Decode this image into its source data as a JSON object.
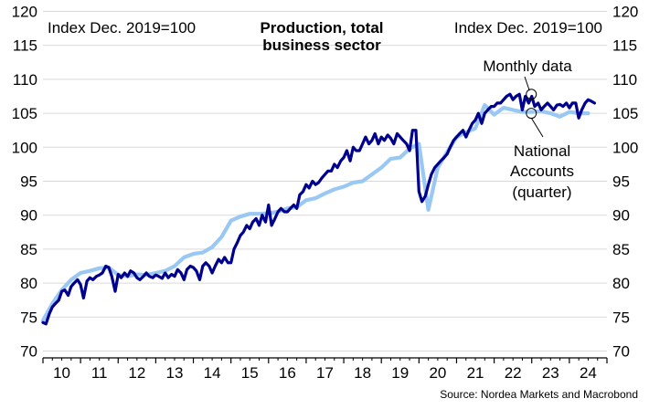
{
  "chart_data": {
    "type": "line",
    "title": "Production, total business sector",
    "title_lines": [
      "Production, total",
      "business sector"
    ],
    "ylabel_left": "Index Dec. 2019=100",
    "ylabel_right": "Index Dec. 2019=100",
    "source": "Source: Nordea Markets and Macrobond",
    "ylim": [
      69,
      121
    ],
    "yticks": [
      70,
      75,
      80,
      85,
      90,
      95,
      100,
      105,
      110,
      115,
      120
    ],
    "yticks_labels": [
      "70",
      "75",
      "80",
      "85",
      "90",
      "95",
      "100",
      "105",
      "110",
      "115",
      "120"
    ],
    "x_range": [
      2010,
      2025
    ],
    "xtick_labels": [
      "10",
      "11",
      "12",
      "13",
      "14",
      "15",
      "16",
      "17",
      "18",
      "19",
      "20",
      "21",
      "22",
      "23",
      "24"
    ],
    "grid": true,
    "annotations": [
      {
        "lines": [
          "Monthly data"
        ],
        "target": [
          2023.0,
          107.8
        ]
      },
      {
        "lines": [
          "National",
          "Accounts",
          "(quarter)"
        ],
        "target": [
          2023.0,
          105.0
        ]
      }
    ],
    "series": [
      {
        "name": "Monthly data",
        "color": "#00008f",
        "x": [
          2010.0,
          2010.08,
          2010.17,
          2010.25,
          2010.33,
          2010.42,
          2010.5,
          2010.58,
          2010.67,
          2010.75,
          2010.83,
          2010.92,
          2011.0,
          2011.08,
          2011.17,
          2011.25,
          2011.33,
          2011.42,
          2011.5,
          2011.58,
          2011.67,
          2011.75,
          2011.83,
          2011.92,
          2012.0,
          2012.08,
          2012.17,
          2012.25,
          2012.33,
          2012.42,
          2012.5,
          2012.58,
          2012.67,
          2012.75,
          2012.83,
          2012.92,
          2013.0,
          2013.08,
          2013.17,
          2013.25,
          2013.33,
          2013.42,
          2013.5,
          2013.58,
          2013.67,
          2013.75,
          2013.83,
          2013.92,
          2014.0,
          2014.08,
          2014.17,
          2014.25,
          2014.33,
          2014.42,
          2014.5,
          2014.58,
          2014.67,
          2014.75,
          2014.83,
          2014.92,
          2015.0,
          2015.08,
          2015.17,
          2015.25,
          2015.33,
          2015.42,
          2015.5,
          2015.58,
          2015.67,
          2015.75,
          2015.83,
          2015.92,
          2016.0,
          2016.08,
          2016.17,
          2016.25,
          2016.33,
          2016.42,
          2016.5,
          2016.58,
          2016.67,
          2016.75,
          2016.83,
          2016.92,
          2017.0,
          2017.08,
          2017.17,
          2017.25,
          2017.33,
          2017.42,
          2017.5,
          2017.58,
          2017.67,
          2017.75,
          2017.83,
          2017.92,
          2018.0,
          2018.08,
          2018.17,
          2018.25,
          2018.33,
          2018.42,
          2018.5,
          2018.58,
          2018.67,
          2018.75,
          2018.83,
          2018.92,
          2019.0,
          2019.08,
          2019.17,
          2019.25,
          2019.33,
          2019.42,
          2019.5,
          2019.58,
          2019.67,
          2019.75,
          2019.83,
          2019.92,
          2020.0,
          2020.08,
          2020.17,
          2020.25,
          2020.33,
          2020.42,
          2020.5,
          2020.58,
          2020.67,
          2020.75,
          2020.83,
          2020.92,
          2021.0,
          2021.08,
          2021.17,
          2021.25,
          2021.33,
          2021.42,
          2021.5,
          2021.58,
          2021.67,
          2021.75,
          2021.83,
          2021.92,
          2022.0,
          2022.08,
          2022.17,
          2022.25,
          2022.33,
          2022.42,
          2022.5,
          2022.58,
          2022.67,
          2022.75,
          2022.83,
          2022.92,
          2023.0,
          2023.08,
          2023.17,
          2023.25,
          2023.33,
          2023.42,
          2023.5,
          2023.58,
          2023.67,
          2023.75,
          2023.83,
          2023.92,
          2024.0,
          2024.08,
          2024.17,
          2024.25,
          2024.33,
          2024.42,
          2024.5,
          2024.58,
          2024.67
        ],
        "values": [
          74.2,
          74.0,
          75.5,
          76.5,
          77.0,
          77.5,
          78.8,
          79.0,
          78.2,
          79.5,
          80.0,
          80.5,
          79.8,
          77.8,
          80.3,
          80.8,
          80.5,
          81.0,
          81.2,
          81.5,
          82.5,
          82.3,
          81.0,
          78.8,
          81.3,
          80.8,
          81.5,
          81.0,
          81.8,
          81.5,
          80.8,
          80.5,
          81.0,
          81.5,
          81.0,
          80.8,
          81.2,
          81.0,
          80.7,
          81.5,
          80.8,
          81.3,
          81.0,
          82.0,
          81.5,
          80.5,
          82.0,
          82.5,
          82.3,
          81.8,
          80.5,
          82.5,
          83.0,
          82.5,
          81.5,
          82.5,
          83.5,
          83.0,
          83.8,
          83.0,
          83.0,
          85.0,
          86.0,
          87.0,
          87.5,
          88.5,
          88.0,
          89.0,
          89.5,
          88.5,
          90.0,
          89.0,
          91.5,
          88.5,
          89.5,
          90.5,
          91.0,
          90.5,
          90.5,
          91.0,
          91.5,
          91.0,
          93.0,
          93.5,
          94.5,
          94.0,
          95.0,
          94.5,
          94.8,
          95.5,
          96.0,
          96.5,
          96.5,
          97.5,
          97.0,
          98.0,
          98.5,
          99.5,
          98.0,
          100.0,
          99.5,
          99.5,
          100.5,
          101.5,
          100.5,
          101.0,
          102.0,
          100.5,
          101.5,
          101.0,
          101.8,
          101.3,
          100.5,
          102.0,
          101.5,
          101.0,
          100.5,
          99.5,
          102.5,
          102.5,
          93.5,
          92.0,
          92.8,
          94.5,
          96.0,
          97.0,
          97.5,
          98.0,
          98.5,
          99.0,
          100.0,
          101.0,
          101.5,
          102.0,
          102.5,
          101.5,
          102.5,
          103.5,
          104.0,
          105.0,
          103.5,
          105.0,
          105.5,
          106.0,
          106.0,
          106.5,
          106.5,
          107.0,
          107.5,
          107.8,
          107.0,
          107.5,
          107.8,
          105.5,
          107.5,
          106.5,
          107.5,
          106.0,
          106.5,
          105.5,
          106.0,
          106.5,
          106.0,
          105.5,
          106.2,
          106.3,
          106.0,
          106.5,
          105.8,
          106.5,
          106.5,
          104.3,
          105.5,
          106.5,
          107.0,
          106.8,
          106.5
        ]
      },
      {
        "name": "National Accounts (quarter)",
        "color": "#99c8f3",
        "x": [
          2010.0,
          2010.25,
          2010.5,
          2010.75,
          2011.0,
          2011.25,
          2011.5,
          2011.75,
          2012.0,
          2012.25,
          2012.5,
          2012.75,
          2013.0,
          2013.25,
          2013.5,
          2013.75,
          2014.0,
          2014.25,
          2014.5,
          2014.75,
          2015.0,
          2015.25,
          2015.5,
          2015.75,
          2016.0,
          2016.25,
          2016.5,
          2016.75,
          2017.0,
          2017.25,
          2017.5,
          2017.75,
          2018.0,
          2018.25,
          2018.5,
          2018.75,
          2019.0,
          2019.25,
          2019.5,
          2019.75,
          2020.0,
          2020.25,
          2020.5,
          2020.75,
          2021.0,
          2021.25,
          2021.5,
          2021.75,
          2022.0,
          2022.25,
          2022.5,
          2022.75,
          2023.0,
          2023.25,
          2023.5,
          2023.75,
          2024.0,
          2024.25,
          2024.5
        ],
        "values": [
          74.5,
          77.0,
          79.0,
          80.5,
          81.5,
          81.8,
          82.2,
          82.3,
          81.2,
          81.0,
          81.3,
          81.2,
          81.5,
          81.8,
          82.5,
          83.8,
          84.3,
          84.5,
          85.3,
          86.8,
          89.2,
          89.8,
          90.2,
          90.2,
          90.3,
          90.5,
          91.0,
          91.2,
          92.2,
          92.5,
          93.2,
          93.8,
          94.2,
          94.8,
          95.0,
          96.0,
          97.0,
          98.3,
          98.5,
          99.8,
          100.5,
          90.8,
          97.0,
          99.3,
          101.5,
          102.2,
          102.8,
          106.2,
          104.8,
          105.8,
          105.5,
          105.2,
          105.2,
          105.3,
          105.0,
          104.5,
          105.2,
          105.0,
          105.0
        ]
      }
    ]
  }
}
